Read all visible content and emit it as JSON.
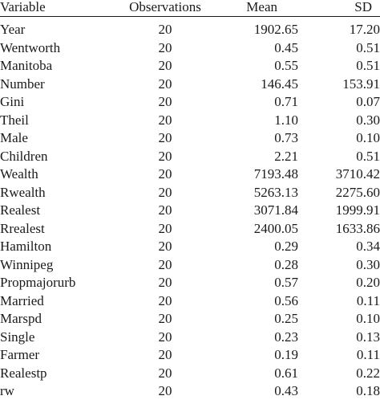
{
  "table": {
    "headers": {
      "variable": "Variable",
      "observations": "Observations",
      "mean": "Mean",
      "sd": "SD"
    },
    "rows": [
      {
        "variable": "Year",
        "observations": "20",
        "mean": "1902.65",
        "sd": "17.20"
      },
      {
        "variable": "Wentworth",
        "observations": "20",
        "mean": "0.45",
        "sd": "0.51"
      },
      {
        "variable": "Manitoba",
        "observations": "20",
        "mean": "0.55",
        "sd": "0.51"
      },
      {
        "variable": "Number",
        "observations": "20",
        "mean": "146.45",
        "sd": "153.91"
      },
      {
        "variable": "Gini",
        "observations": "20",
        "mean": "0.71",
        "sd": "0.07"
      },
      {
        "variable": "Theil",
        "observations": "20",
        "mean": "1.10",
        "sd": "0.30"
      },
      {
        "variable": "Male",
        "observations": "20",
        "mean": "0.73",
        "sd": "0.10"
      },
      {
        "variable": "Children",
        "observations": "20",
        "mean": "2.21",
        "sd": "0.51"
      },
      {
        "variable": "Wealth",
        "observations": "20",
        "mean": "7193.48",
        "sd": "3710.42"
      },
      {
        "variable": "Rwealth",
        "observations": "20",
        "mean": "5263.13",
        "sd": "2275.60"
      },
      {
        "variable": "Realest",
        "observations": "20",
        "mean": "3071.84",
        "sd": "1999.91"
      },
      {
        "variable": "Rrealest",
        "observations": "20",
        "mean": "2400.05",
        "sd": "1633.86"
      },
      {
        "variable": "Hamilton",
        "observations": "20",
        "mean": "0.29",
        "sd": "0.34"
      },
      {
        "variable": "Winnipeg",
        "observations": "20",
        "mean": "0.28",
        "sd": "0.30"
      },
      {
        "variable": "Propmajorurb",
        "observations": "20",
        "mean": "0.57",
        "sd": "0.20"
      },
      {
        "variable": "Married",
        "observations": "20",
        "mean": "0.56",
        "sd": "0.11"
      },
      {
        "variable": "Marspd",
        "observations": "20",
        "mean": "0.25",
        "sd": "0.10"
      },
      {
        "variable": "Single",
        "observations": "20",
        "mean": "0.23",
        "sd": "0.13"
      },
      {
        "variable": "Farmer",
        "observations": "20",
        "mean": "0.19",
        "sd": "0.11"
      },
      {
        "variable": "Realestp",
        "observations": "20",
        "mean": "0.61",
        "sd": "0.22"
      },
      {
        "variable": "rw",
        "observations": "20",
        "mean": "0.43",
        "sd": "0.18"
      }
    ]
  }
}
